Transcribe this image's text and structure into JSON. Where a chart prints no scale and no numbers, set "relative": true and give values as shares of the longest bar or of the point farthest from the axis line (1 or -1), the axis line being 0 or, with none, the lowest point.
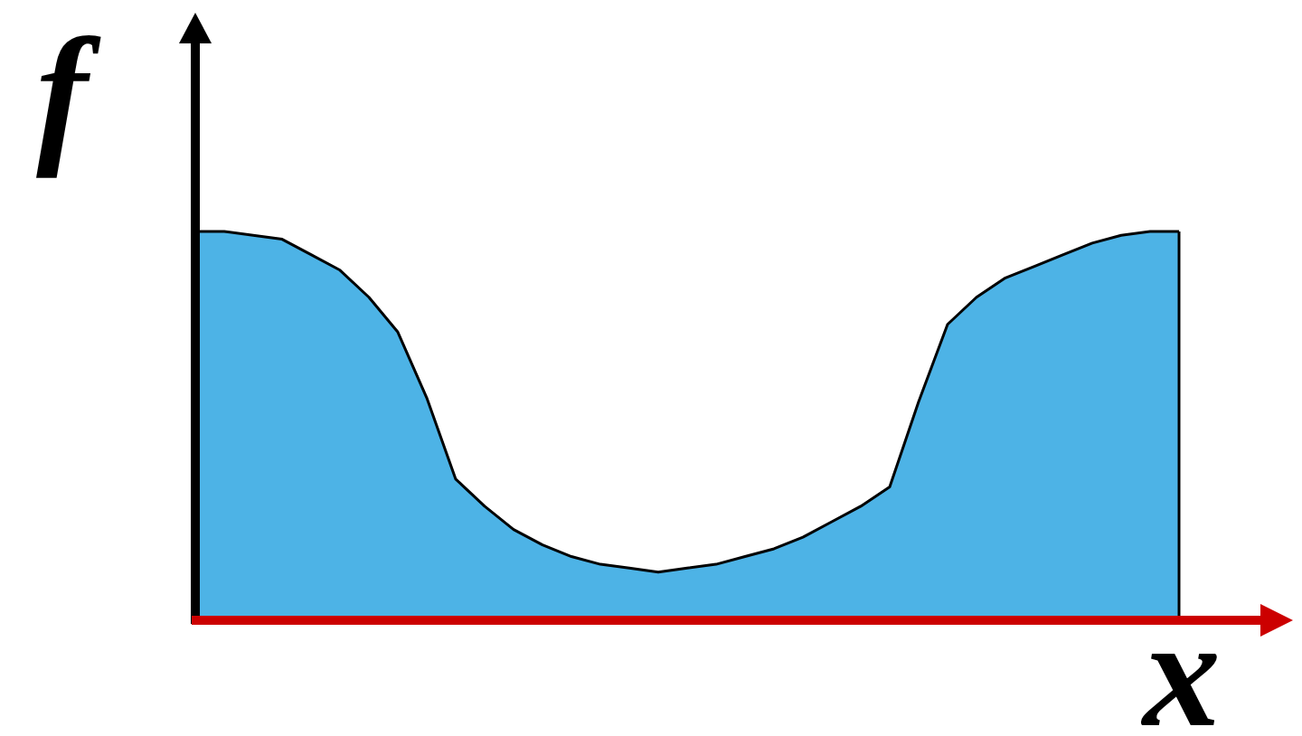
{
  "chart_data": {
    "type": "area",
    "relative": true,
    "xlabel": "x",
    "ylabel": "f",
    "categories": [
      null,
      null,
      null,
      null,
      null,
      null,
      null,
      null,
      null,
      null,
      null,
      null,
      null,
      null,
      null,
      null,
      null,
      null,
      null,
      null,
      null,
      null,
      null,
      null,
      null,
      null,
      null,
      null,
      null,
      null,
      null,
      null,
      null,
      null,
      null
    ],
    "values": [
      1.0,
      1.0,
      0.99,
      0.98,
      0.94,
      0.9,
      0.83,
      0.74,
      0.57,
      0.36,
      0.29,
      0.23,
      0.19,
      0.16,
      0.14,
      0.13,
      0.12,
      0.13,
      0.14,
      0.16,
      0.18,
      0.21,
      0.25,
      0.29,
      0.34,
      0.56,
      0.76,
      0.83,
      0.88,
      0.91,
      0.94,
      0.97,
      0.99,
      1.0,
      1.0
    ],
    "color": "#4db3e6"
  }
}
